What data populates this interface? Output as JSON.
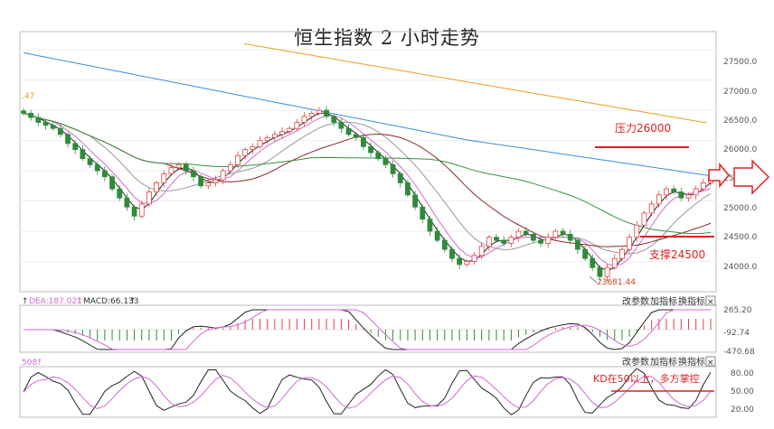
{
  "title": "恒生指数 2 小时走势",
  "price_panel": {
    "left_label": ".47",
    "y_ticks": [
      "27500.0",
      "27000.0",
      "26500.0",
      "26000.0",
      "25500.0",
      "25000.0",
      "24500.0",
      "24000.0"
    ],
    "low_label": "23681.44",
    "resistance_label": "压力26000",
    "support_label": "支撑24500"
  },
  "macd_panel": {
    "dea_label": "DEA:187.021",
    "macd_label": "MACD:66.133",
    "y_ticks": [
      "265.20",
      "-92.74",
      "-470.68"
    ],
    "buttons": [
      "改参数",
      "加指标",
      "换指标"
    ],
    "close": "×"
  },
  "kd_panel": {
    "left_label": "508",
    "y_ticks": [
      "80.00",
      "50.00",
      "20.00"
    ],
    "buttons": [
      "改参数",
      "加指标",
      "换指标"
    ],
    "close": "×",
    "note": "KD在50以上，多方掌控"
  },
  "colors": {
    "up": "#e04040",
    "down": "#2e8b3a",
    "ma_pink": "#d06ad0",
    "ma_black": "#222222",
    "ma_gray": "#999999",
    "ma_brown": "#8b2a2a",
    "ma_green": "#3b8f3b",
    "ma_blue": "#3a8fd8",
    "ma_orange": "#e8a020",
    "annotation_red": "#e02020"
  },
  "chart_data": [
    {
      "type": "candlestick",
      "title": "恒生指数 2 小时走势",
      "ylim": [
        23500,
        27800
      ],
      "annotations": [
        {
          "text": "压力26000",
          "y": 26000
        },
        {
          "text": "支撑24500",
          "y": 24500
        },
        {
          "text": "23681.44",
          "y": 23681.44
        }
      ],
      "close": [
        26450,
        26380,
        26300,
        26250,
        26200,
        26100,
        25950,
        25850,
        25700,
        25600,
        25500,
        25400,
        25200,
        25050,
        24900,
        24750,
        24950,
        25150,
        25300,
        25450,
        25550,
        25600,
        25500,
        25400,
        25250,
        25300,
        25350,
        25500,
        25600,
        25750,
        25850,
        25900,
        26000,
        26050,
        26100,
        26150,
        26200,
        26300,
        26400,
        26450,
        26500,
        26400,
        26300,
        26200,
        26100,
        26050,
        25900,
        25800,
        25700,
        25600,
        25450,
        25300,
        25100,
        24900,
        24700,
        24500,
        24350,
        24200,
        24050,
        23950,
        24000,
        24100,
        24250,
        24400,
        24350,
        24300,
        24400,
        24500,
        24450,
        24350,
        24300,
        24400,
        24500,
        24450,
        24350,
        24200,
        24050,
        23900,
        23750,
        23900,
        24050,
        24200,
        24400,
        24600,
        24800,
        24950,
        25100,
        25200,
        25150,
        25050,
        25100,
        25200,
        25300,
        25400
      ]
    },
    {
      "type": "macd",
      "series": [
        {
          "name": "DEA",
          "value": 187.021
        },
        {
          "name": "MACD",
          "value": 66.133
        }
      ],
      "ylim": [
        -470.68,
        265.2
      ]
    },
    {
      "type": "line",
      "ylim": [
        20,
        80
      ],
      "annotations": [
        {
          "text": "KD在50以上，多方掌控",
          "y": 50
        }
      ]
    }
  ]
}
